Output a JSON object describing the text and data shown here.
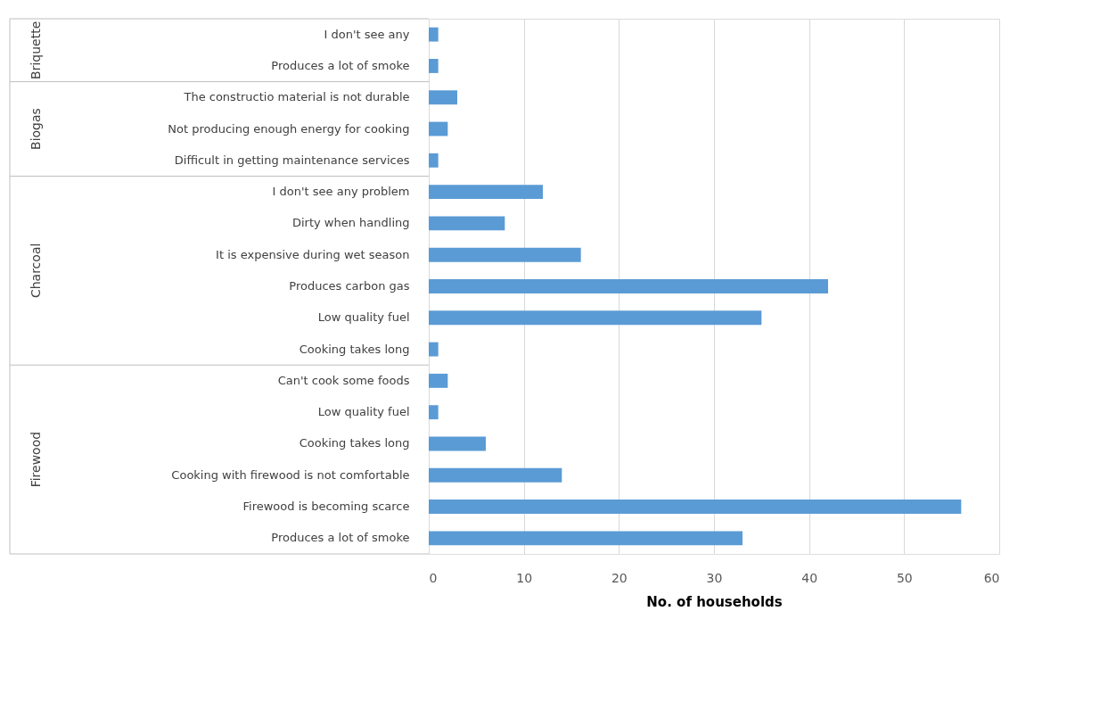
{
  "chart_data": {
    "type": "bar",
    "orientation": "horizontal",
    "xlabel": "No. of households",
    "categories": [
      "I don't see any",
      "Produces a lot of smoke",
      "The constructio material is not durable",
      "Not producing enough energy for cooking",
      "Difficult in getting maintenance services",
      "I don't see any problem",
      "Dirty when handling",
      "It is expensive during wet season",
      "Produces carbon gas",
      "Low quality fuel",
      "Cooking takes long",
      "Can't cook some foods",
      "Low quality fuel",
      "Cooking takes long",
      "Cooking with firewood is not comfortable",
      "Firewood is becoming scarce",
      "Produces a lot of smoke"
    ],
    "values": [
      1,
      1,
      3,
      2,
      1,
      12,
      8,
      16,
      42,
      35,
      1,
      2,
      1,
      6,
      14,
      56,
      33
    ],
    "color": "#5b9bd5",
    "xlim": [
      0,
      60
    ],
    "xticks": [
      0,
      10,
      20,
      30,
      40,
      50,
      60
    ],
    "grid": "x",
    "annotations": [
      "Briquette",
      "Biogas",
      "Charcoal",
      "Firewood"
    ]
  }
}
